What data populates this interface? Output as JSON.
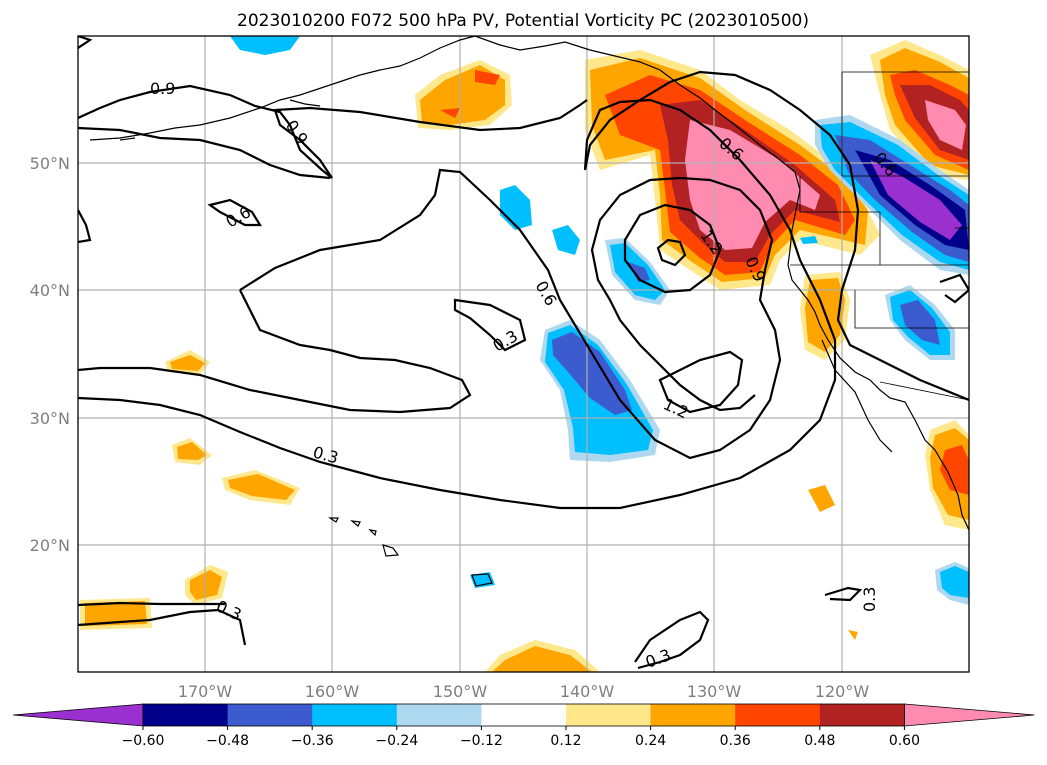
{
  "title": "2023010200 F072 500 hPa PV, Potential Vorticity PC (2023010500)",
  "map": {
    "longitude_labels": [
      "170°W",
      "160°W",
      "150°W",
      "140°W",
      "130°W",
      "120°W"
    ],
    "latitude_labels": [
      "50°N",
      "40°N",
      "30°N",
      "20°N"
    ],
    "extent": {
      "lon_min": -180,
      "lon_max": -110,
      "lat_min": 10,
      "lat_max": 60
    },
    "gridlines": true,
    "contour_labels": [
      "0.9",
      "0.9",
      "0.6",
      "0.6",
      "0.3",
      "1.2",
      "0.9",
      "1.2",
      "0.3",
      "0.3",
      "0.3",
      "0.3",
      "0.6",
      "0.6"
    ]
  },
  "colorbar": {
    "tick_labels": [
      "−0.60",
      "−0.48",
      "−0.36",
      "−0.24",
      "−0.12",
      "0.12",
      "0.24",
      "0.36",
      "0.48",
      "0.60"
    ],
    "colors": [
      "#9b30d0",
      "#00008b",
      "#3b5bcf",
      "#00bfff",
      "#add8f0",
      "#ffffff",
      "#ffe88c",
      "#ffa500",
      "#ff4500",
      "#b22222",
      "#ff8cb0"
    ],
    "extend": "both"
  }
}
